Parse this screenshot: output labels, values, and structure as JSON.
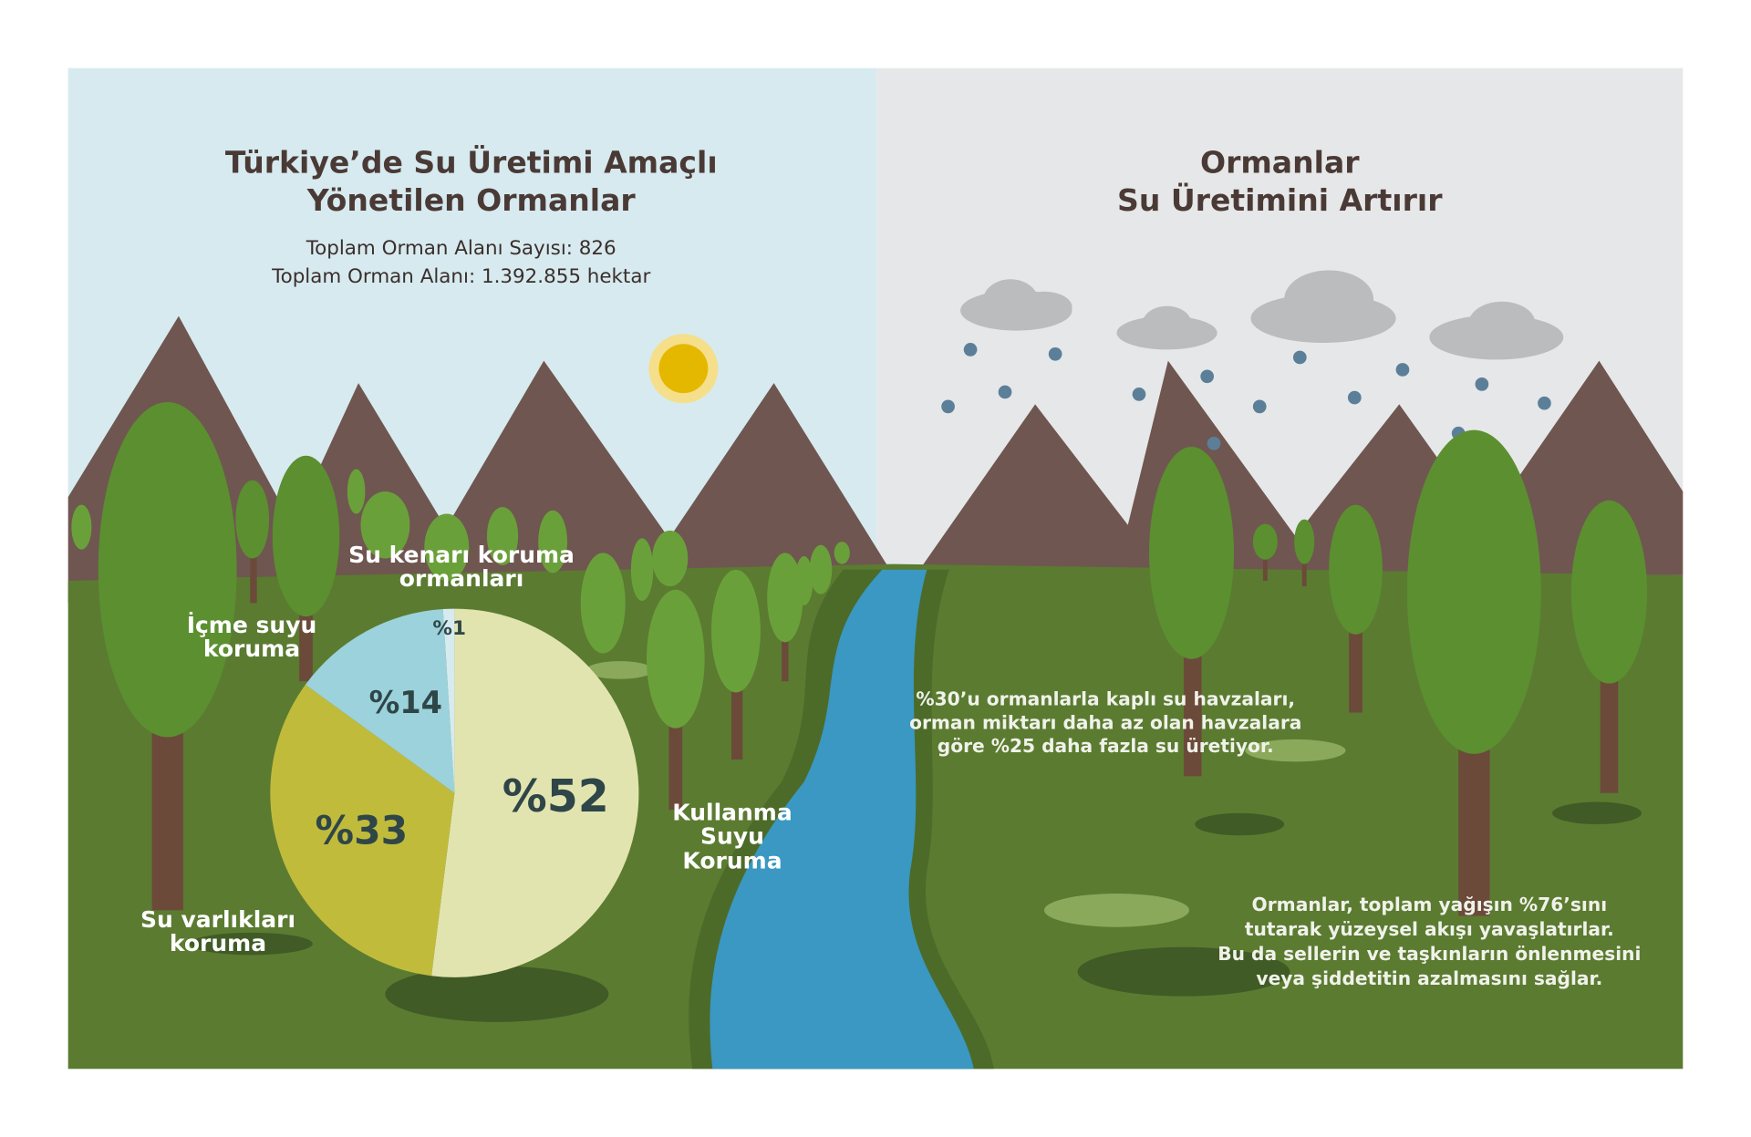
{
  "chart_data": {
    "type": "pie",
    "title": [
      "Türkiye’de Su Üretimi Amaçlı",
      "Yönetilen Ormanlar"
    ],
    "subtitle": [
      "Toplam Orman Alanı Sayısı: 826",
      "Toplam Orman Alanı: 1.392.855 hektar"
    ],
    "categories": [
      "Kullanma Suyu Koruma",
      "Su varlıkları koruma",
      "İçme suyu koruma",
      "Su kenarı koruma ormanları"
    ],
    "values": [
      52,
      33,
      14,
      1
    ],
    "value_labels": [
      "%52",
      "%33",
      "%14",
      "%1"
    ],
    "colors": [
      "#e2e4b0",
      "#c1bb3c",
      "#9bd2db",
      "#d7eaef"
    ]
  },
  "right_panel": {
    "title": [
      "Ormanlar",
      "Su Üretimini Artırır"
    ],
    "notes": [
      [
        "%30’u ormanlarla kaplı su havzaları,",
        "orman miktarı daha az olan havzalara",
        "göre %25 daha fazla su üretiyor."
      ],
      [
        "Ormanlar, toplam yağışın %76’sını",
        "tutarak yüzeysel akışı yavaşlatırlar.",
        "Bu da sellerin ve taşkınların önlenmesini",
        "veya şiddetitin azalmasını sağlar."
      ]
    ]
  }
}
